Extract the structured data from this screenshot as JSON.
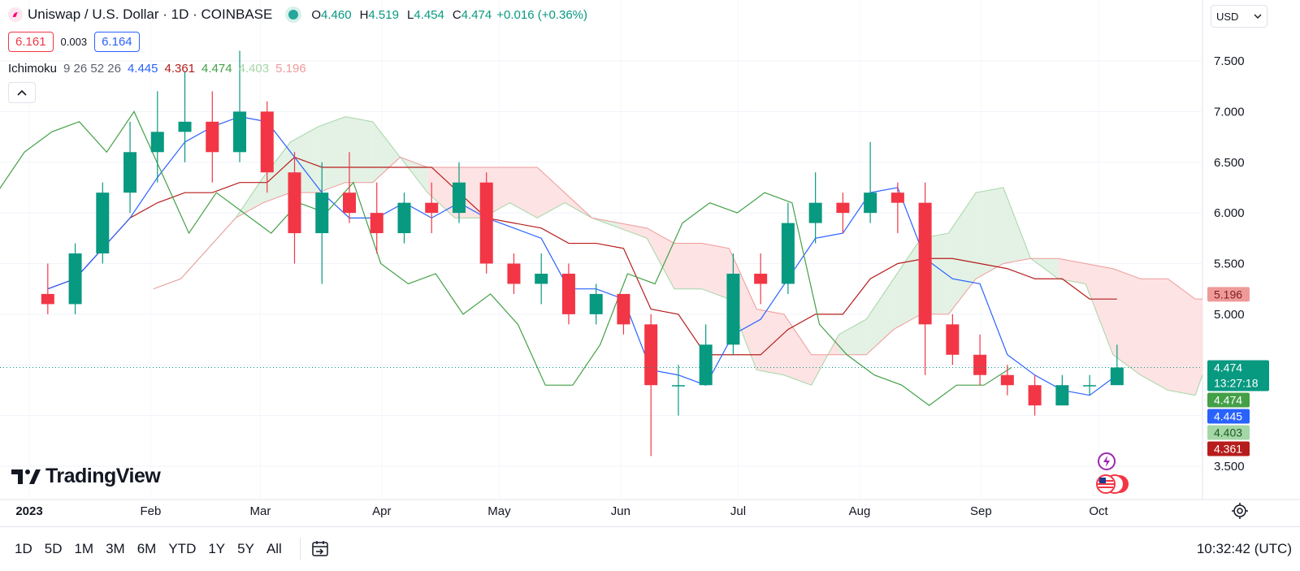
{
  "header": {
    "title": "Uniswap / U.S. Dollar · 1D · COINBASE",
    "ohlc": [
      {
        "key": "O",
        "value": "4.460"
      },
      {
        "key": "H",
        "value": "4.519"
      },
      {
        "key": "L",
        "value": "4.454"
      },
      {
        "key": "C",
        "value": "4.474"
      }
    ],
    "change": "+0.016 (+0.36%)",
    "sell_price": "6.161",
    "spread": "0.003",
    "buy_price": "6.164",
    "currency": "USD"
  },
  "indicator": {
    "name": "Ichimoku",
    "params": "9 26 52 26",
    "values": [
      {
        "value": "4.445",
        "color": "#2962ff"
      },
      {
        "value": "4.361",
        "color": "#b71c1c"
      },
      {
        "value": "4.474",
        "color": "#43a047"
      },
      {
        "value": "4.403",
        "color": "#a5d6a7"
      },
      {
        "value": "5.196",
        "color": "#ef9a9a"
      }
    ]
  },
  "brand": "TradingView",
  "ranges": [
    "1D",
    "5D",
    "1M",
    "3M",
    "6M",
    "YTD",
    "1Y",
    "5Y",
    "All"
  ],
  "clock": "10:32:42 (UTC)",
  "icons": [
    "uniswap-logo-icon",
    "status-dot-icon",
    "chevron-up-icon",
    "chevron-down-icon",
    "tradingview-logo-icon",
    "date-range-icon",
    "settings-icon",
    "lightning-event-icon",
    "us-flag-event-icon"
  ],
  "chart_data": {
    "type": "candlestick",
    "symbol": "UNI/USD",
    "interval": "1D",
    "x_labels": [
      "2023",
      "Feb",
      "Mar",
      "Apr",
      "May",
      "Jun",
      "Jul",
      "Aug",
      "Sep",
      "Oct"
    ],
    "y_ticks": [
      "3.500",
      "4.000",
      "4.500",
      "5.000",
      "5.500",
      "6.000",
      "6.500",
      "7.000",
      "7.500"
    ],
    "ylim": [
      3.3,
      7.8
    ],
    "colors": {
      "up": "#089981",
      "down": "#f23645",
      "tenkan": "#2962ff",
      "kijun": "#b71c1c",
      "chikou": "#43a047",
      "cloud_bull": "#e3f2e5",
      "cloud_bear": "#fde3e3"
    },
    "candles_weekly": [
      {
        "date": "2023-01-02",
        "open": 5.2,
        "high": 5.5,
        "low": 5.0,
        "close": 5.1
      },
      {
        "date": "2023-01-09",
        "open": 5.1,
        "high": 5.7,
        "low": 5.0,
        "close": 5.6
      },
      {
        "date": "2023-01-16",
        "open": 5.6,
        "high": 6.3,
        "low": 5.5,
        "close": 6.2
      },
      {
        "date": "2023-01-23",
        "open": 6.2,
        "high": 6.9,
        "low": 6.0,
        "close": 6.6
      },
      {
        "date": "2023-01-30",
        "open": 6.6,
        "high": 7.2,
        "low": 6.3,
        "close": 6.8
      },
      {
        "date": "2023-02-06",
        "open": 6.8,
        "high": 7.4,
        "low": 6.5,
        "close": 6.9
      },
      {
        "date": "2023-02-13",
        "open": 6.9,
        "high": 7.2,
        "low": 6.3,
        "close": 6.6
      },
      {
        "date": "2023-02-20",
        "open": 6.6,
        "high": 7.6,
        "low": 6.5,
        "close": 7.0
      },
      {
        "date": "2023-02-27",
        "open": 7.0,
        "high": 7.1,
        "low": 6.2,
        "close": 6.4
      },
      {
        "date": "2023-03-06",
        "open": 6.4,
        "high": 6.6,
        "low": 5.5,
        "close": 5.8
      },
      {
        "date": "2023-03-13",
        "open": 5.8,
        "high": 6.5,
        "low": 5.3,
        "close": 6.2
      },
      {
        "date": "2023-03-20",
        "open": 6.2,
        "high": 6.6,
        "low": 5.9,
        "close": 6.0
      },
      {
        "date": "2023-03-27",
        "open": 6.0,
        "high": 6.3,
        "low": 5.6,
        "close": 5.8
      },
      {
        "date": "2023-04-03",
        "open": 5.8,
        "high": 6.2,
        "low": 5.7,
        "close": 6.1
      },
      {
        "date": "2023-04-10",
        "open": 6.1,
        "high": 6.3,
        "low": 5.8,
        "close": 6.0
      },
      {
        "date": "2023-04-17",
        "open": 6.0,
        "high": 6.5,
        "low": 5.9,
        "close": 6.3
      },
      {
        "date": "2023-04-24",
        "open": 6.3,
        "high": 6.4,
        "low": 5.4,
        "close": 5.5
      },
      {
        "date": "2023-05-01",
        "open": 5.5,
        "high": 5.6,
        "low": 5.2,
        "close": 5.3
      },
      {
        "date": "2023-05-08",
        "open": 5.3,
        "high": 5.6,
        "low": 5.1,
        "close": 5.4
      },
      {
        "date": "2023-05-15",
        "open": 5.4,
        "high": 5.5,
        "low": 4.9,
        "close": 5.0
      },
      {
        "date": "2023-05-22",
        "open": 5.0,
        "high": 5.3,
        "low": 4.9,
        "close": 5.2
      },
      {
        "date": "2023-05-29",
        "open": 5.2,
        "high": 5.2,
        "low": 4.8,
        "close": 4.9
      },
      {
        "date": "2023-06-05",
        "open": 4.9,
        "high": 5.0,
        "low": 3.6,
        "close": 4.3
      },
      {
        "date": "2023-06-12",
        "open": 4.3,
        "high": 4.5,
        "low": 4.0,
        "close": 4.3
      },
      {
        "date": "2023-06-19",
        "open": 4.3,
        "high": 4.9,
        "low": 4.3,
        "close": 4.7
      },
      {
        "date": "2023-06-26",
        "open": 4.7,
        "high": 5.6,
        "low": 4.6,
        "close": 5.4
      },
      {
        "date": "2023-07-03",
        "open": 5.4,
        "high": 5.6,
        "low": 5.1,
        "close": 5.3
      },
      {
        "date": "2023-07-10",
        "open": 5.3,
        "high": 6.1,
        "low": 5.2,
        "close": 5.9
      },
      {
        "date": "2023-07-17",
        "open": 5.9,
        "high": 6.4,
        "low": 5.7,
        "close": 6.1
      },
      {
        "date": "2023-07-24",
        "open": 6.1,
        "high": 6.2,
        "low": 5.8,
        "close": 6.0
      },
      {
        "date": "2023-07-31",
        "open": 6.0,
        "high": 6.7,
        "low": 5.9,
        "close": 6.2
      },
      {
        "date": "2023-08-07",
        "open": 6.2,
        "high": 6.3,
        "low": 5.8,
        "close": 6.1
      },
      {
        "date": "2023-08-14",
        "open": 6.1,
        "high": 6.3,
        "low": 4.4,
        "close": 4.9
      },
      {
        "date": "2023-08-21",
        "open": 4.9,
        "high": 5.0,
        "low": 4.5,
        "close": 4.6
      },
      {
        "date": "2023-08-28",
        "open": 4.6,
        "high": 4.8,
        "low": 4.3,
        "close": 4.4
      },
      {
        "date": "2023-09-04",
        "open": 4.4,
        "high": 4.5,
        "low": 4.2,
        "close": 4.3
      },
      {
        "date": "2023-09-11",
        "open": 4.3,
        "high": 4.4,
        "low": 4.0,
        "close": 4.1
      },
      {
        "date": "2023-09-18",
        "open": 4.1,
        "high": 4.4,
        "low": 4.1,
        "close": 4.3
      },
      {
        "date": "2023-09-25",
        "open": 4.3,
        "high": 4.4,
        "low": 4.2,
        "close": 4.3
      },
      {
        "date": "2023-10-02",
        "open": 4.3,
        "high": 4.7,
        "low": 4.3,
        "close": 4.474
      }
    ],
    "last_price": 4.474,
    "countdown": "13:27:18",
    "axis_labels": [
      {
        "value": 5.196,
        "text": "5.196",
        "bg": "#ef9a9a",
        "fg": "#7f1d1d"
      },
      {
        "value": 4.474,
        "text": "4.474",
        "bg": "#089981",
        "fg": "#ffffff"
      },
      {
        "value": 4.474,
        "text": "4.474",
        "bg": "#43a047",
        "fg": "#ffffff"
      },
      {
        "value": 4.445,
        "text": "4.445",
        "bg": "#2962ff",
        "fg": "#ffffff"
      },
      {
        "value": 4.403,
        "text": "4.403",
        "bg": "#a5d6a7",
        "fg": "#1b5e20"
      },
      {
        "value": 4.361,
        "text": "4.361",
        "bg": "#b71c1c",
        "fg": "#ffffff"
      }
    ]
  }
}
